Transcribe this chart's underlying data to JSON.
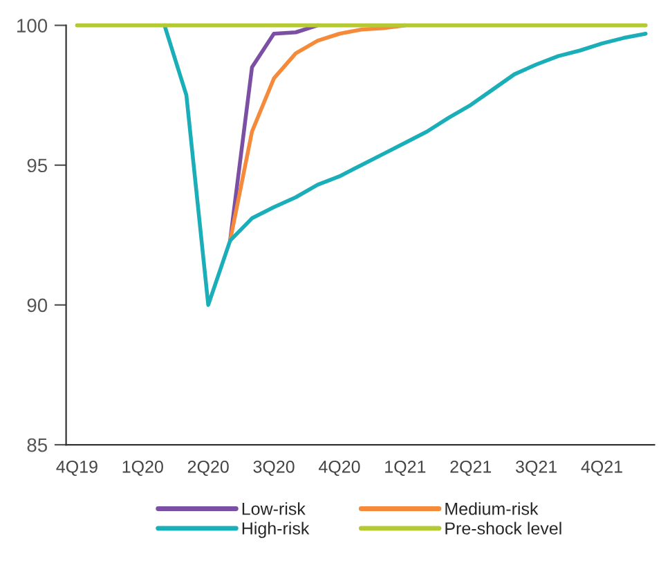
{
  "chart_data": {
    "type": "line",
    "ylim": [
      85,
      100
    ],
    "yticks": [
      85,
      90,
      95,
      100
    ],
    "categories": [
      "4Q19",
      null,
      null,
      "1Q20",
      null,
      null,
      "2Q20",
      null,
      null,
      "3Q20",
      null,
      null,
      "4Q20",
      null,
      null,
      "1Q21",
      null,
      null,
      "2Q21",
      null,
      null,
      "3Q21",
      null,
      null,
      "4Q21",
      null,
      null
    ],
    "grid": false,
    "legend": "bottom",
    "marker": "none",
    "line_style": "solid",
    "series": [
      {
        "name": "Low-risk",
        "color": "#7b4fa3",
        "values": [
          null,
          null,
          null,
          null,
          null,
          null,
          null,
          92.3,
          98.5,
          99.7,
          99.75,
          100,
          null,
          null,
          null,
          null,
          null,
          null,
          null,
          null,
          null,
          null,
          null,
          null,
          null,
          null,
          null
        ]
      },
      {
        "name": "Medium-risk",
        "color": "#f58a3a",
        "values": [
          null,
          null,
          null,
          null,
          null,
          null,
          null,
          92.3,
          96.2,
          98.1,
          99.0,
          99.45,
          99.7,
          99.85,
          99.9,
          100,
          null,
          null,
          null,
          null,
          null,
          null,
          null,
          null,
          null,
          null,
          null
        ]
      },
      {
        "name": "High-risk",
        "color": "#1aaeb8",
        "values": [
          null,
          null,
          null,
          null,
          100,
          97.5,
          90,
          92.3,
          93.1,
          93.5,
          93.85,
          94.3,
          94.6,
          95.0,
          95.4,
          95.8,
          96.2,
          96.7,
          97.15,
          97.7,
          98.25,
          98.6,
          98.9,
          99.1,
          99.35,
          99.55,
          99.7
        ]
      },
      {
        "name": "Pre-shock level",
        "color": "#b5c935",
        "values": [
          100,
          100,
          100,
          100,
          100,
          100,
          100,
          100,
          100,
          100,
          100,
          100,
          100,
          100,
          100,
          100,
          100,
          100,
          100,
          100,
          100,
          100,
          100,
          100,
          100,
          100,
          100
        ]
      }
    ]
  }
}
